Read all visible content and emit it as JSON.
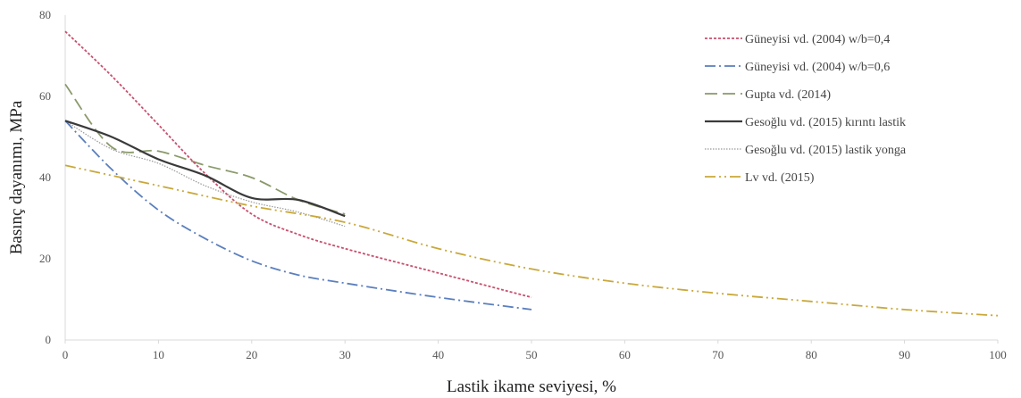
{
  "chart_data": {
    "type": "line",
    "xlabel": "Lastik ikame seviyesi, %",
    "ylabel": "Basınç dayanımı, MPa",
    "xlim": [
      0,
      100
    ],
    "ylim": [
      0,
      80
    ],
    "x_ticks": [
      "0",
      "10",
      "20",
      "30",
      "40",
      "50",
      "60",
      "70",
      "80",
      "90",
      "100"
    ],
    "y_ticks": [
      "0",
      "20",
      "40",
      "60",
      "80"
    ],
    "grid": false,
    "legend_position": "top-right",
    "series": [
      {
        "name": "Güneyisi vd. (2004) w/b=0,4",
        "color": "#c8506e",
        "dash": "dotted-short",
        "points": [
          [
            0,
            76
          ],
          [
            5,
            65
          ],
          [
            10,
            53
          ],
          [
            15,
            41
          ],
          [
            20,
            31
          ],
          [
            25,
            26
          ],
          [
            30,
            22.5
          ],
          [
            40,
            16.5
          ],
          [
            50,
            10.5
          ]
        ]
      },
      {
        "name": "Güneyisi vd. (2004) w/b=0,6",
        "color": "#5b7fbe",
        "dash": "dash-dot",
        "points": [
          [
            0,
            54
          ],
          [
            5,
            42
          ],
          [
            10,
            32
          ],
          [
            15,
            25
          ],
          [
            20,
            19.5
          ],
          [
            25,
            16
          ],
          [
            30,
            14
          ],
          [
            40,
            10.5
          ],
          [
            50,
            7.5
          ]
        ]
      },
      {
        "name": "Gupta vd. (2014)",
        "color": "#8a9a6a",
        "dash": "long-dash",
        "points": [
          [
            0,
            63
          ],
          [
            5,
            47.5
          ],
          [
            10,
            46.5
          ],
          [
            15,
            43
          ],
          [
            20,
            40
          ],
          [
            25,
            34.5
          ],
          [
            30,
            31
          ]
        ]
      },
      {
        "name": "Gesoğlu vd. (2015) kırıntı lastik",
        "color": "#3a3a3a",
        "dash": "solid",
        "points": [
          [
            0,
            54
          ],
          [
            5,
            50
          ],
          [
            10,
            44.5
          ],
          [
            15,
            40.5
          ],
          [
            20,
            35
          ],
          [
            25,
            34.5
          ],
          [
            30,
            30.5
          ]
        ]
      },
      {
        "name": "Gesoğlu vd. (2015) lastik yonga",
        "color": "#999999",
        "dash": "dotted",
        "points": [
          [
            0,
            54
          ],
          [
            5,
            47
          ],
          [
            10,
            43.5
          ],
          [
            15,
            38
          ],
          [
            20,
            34
          ],
          [
            25,
            31.5
          ],
          [
            30,
            28
          ]
        ]
      },
      {
        "name": "Lv vd. (2015)",
        "color": "#c9a83a",
        "dash": "dash-dot-dot",
        "points": [
          [
            0,
            43
          ],
          [
            10,
            38
          ],
          [
            20,
            33
          ],
          [
            30,
            29
          ],
          [
            40,
            22.5
          ],
          [
            50,
            17.5
          ],
          [
            60,
            14
          ],
          [
            70,
            11.5
          ],
          [
            80,
            9.5
          ],
          [
            90,
            7.5
          ],
          [
            100,
            6
          ]
        ]
      }
    ]
  }
}
